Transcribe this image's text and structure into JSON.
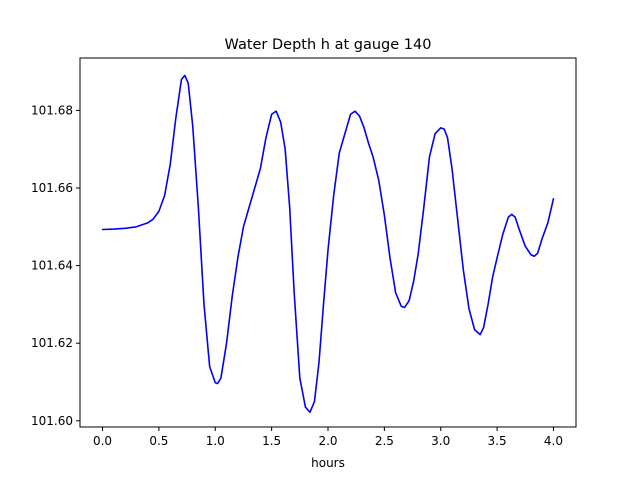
{
  "chart_data": {
    "type": "line",
    "title": "Water Depth h at gauge 140",
    "xlabel": "hours",
    "ylabel": "",
    "xlim": [
      -0.2,
      4.2
    ],
    "ylim": [
      101.5984,
      101.6935
    ],
    "xticks": [
      0.0,
      0.5,
      1.0,
      1.5,
      2.0,
      2.5,
      3.0,
      3.5,
      4.0
    ],
    "xtick_labels": [
      "0.0",
      "0.5",
      "1.0",
      "1.5",
      "2.0",
      "2.5",
      "3.0",
      "3.5",
      "4.0"
    ],
    "yticks": [
      101.6,
      101.62,
      101.64,
      101.66,
      101.68
    ],
    "ytick_labels": [
      "101.60",
      "101.62",
      "101.64",
      "101.66",
      "101.68"
    ],
    "grid": false,
    "legend": "none",
    "series": [
      {
        "color": "#0000ff",
        "x": [
          0.0,
          0.1,
          0.2,
          0.3,
          0.4,
          0.45,
          0.5,
          0.55,
          0.6,
          0.65,
          0.7,
          0.73,
          0.76,
          0.8,
          0.85,
          0.9,
          0.95,
          1.0,
          1.02,
          1.05,
          1.1,
          1.15,
          1.2,
          1.25,
          1.3,
          1.35,
          1.4,
          1.45,
          1.5,
          1.54,
          1.58,
          1.62,
          1.66,
          1.7,
          1.75,
          1.8,
          1.84,
          1.88,
          1.92,
          1.96,
          2.0,
          2.05,
          2.1,
          2.15,
          2.2,
          2.24,
          2.28,
          2.32,
          2.36,
          2.4,
          2.45,
          2.5,
          2.55,
          2.6,
          2.65,
          2.68,
          2.72,
          2.76,
          2.8,
          2.85,
          2.9,
          2.95,
          3.0,
          3.03,
          3.06,
          3.1,
          3.15,
          3.2,
          3.25,
          3.3,
          3.35,
          3.38,
          3.42,
          3.46,
          3.5,
          3.55,
          3.6,
          3.63,
          3.66,
          3.7,
          3.75,
          3.8,
          3.83,
          3.86,
          3.9,
          3.95,
          4.0
        ],
        "values": [
          101.6493,
          101.6494,
          101.6496,
          101.65,
          101.651,
          101.652,
          101.654,
          101.658,
          101.666,
          101.678,
          101.688,
          101.689,
          101.687,
          101.676,
          101.655,
          101.63,
          101.614,
          101.6098,
          101.6096,
          101.611,
          101.62,
          101.632,
          101.642,
          101.65,
          101.655,
          101.66,
          101.665,
          101.673,
          101.679,
          101.6798,
          101.677,
          101.67,
          101.655,
          101.633,
          101.611,
          101.6035,
          101.6022,
          101.605,
          101.615,
          101.63,
          101.644,
          101.658,
          101.669,
          101.674,
          101.679,
          101.6798,
          101.6785,
          101.6755,
          101.6715,
          101.668,
          101.662,
          101.653,
          101.642,
          101.633,
          101.6295,
          101.6292,
          101.631,
          101.636,
          101.643,
          101.655,
          101.668,
          101.674,
          101.6755,
          101.6752,
          101.673,
          101.665,
          101.652,
          101.639,
          101.629,
          101.6235,
          101.6222,
          101.624,
          101.63,
          101.637,
          101.642,
          101.648,
          101.6525,
          101.6532,
          101.6525,
          101.649,
          101.645,
          101.6428,
          101.6424,
          101.6432,
          101.647,
          101.651,
          101.6572
        ]
      }
    ]
  }
}
